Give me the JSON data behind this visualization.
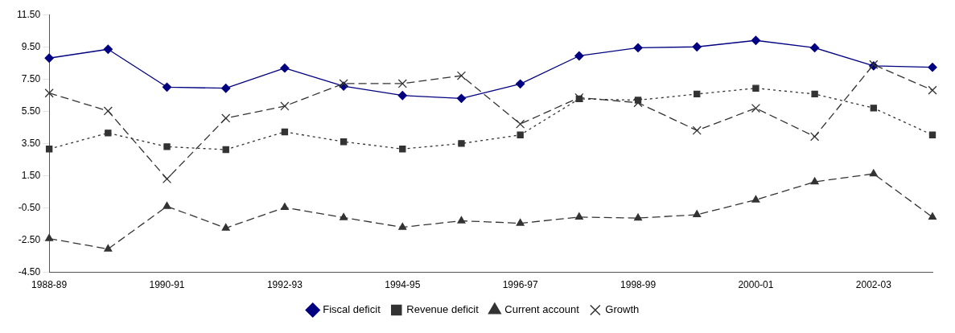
{
  "chart_data": {
    "type": "line",
    "categories": [
      "1988-89",
      null,
      "1990-91",
      null,
      "1992-93",
      null,
      "1994-95",
      null,
      "1996-97",
      null,
      "1998-99",
      null,
      "2000-01",
      null,
      "2002-03",
      null
    ],
    "series": [
      {
        "name": "Fiscal deficit",
        "color": "#000080",
        "marker": "diamond",
        "line_style": "solid",
        "values": [
          8.8,
          9.35,
          7.0,
          6.93,
          8.18,
          7.06,
          6.48,
          6.3,
          7.2,
          8.94,
          9.44,
          9.5,
          9.9,
          9.44,
          8.32,
          8.23
        ]
      },
      {
        "name": "Revenue deficit",
        "color": "#333333",
        "marker": "square",
        "line_style": "dotted",
        "values": [
          3.16,
          4.15,
          3.3,
          3.12,
          4.22,
          3.61,
          3.16,
          3.5,
          4.03,
          6.27,
          6.19,
          6.57,
          6.93,
          6.57,
          5.7,
          4.03
        ]
      },
      {
        "name": "Current account",
        "color": "#333333",
        "marker": "triangle",
        "line_style": "dashed",
        "values": [
          -2.4,
          -3.05,
          -0.4,
          -1.75,
          -0.47,
          -1.1,
          -1.7,
          -1.3,
          -1.45,
          -1.07,
          -1.13,
          -0.92,
          0.0,
          1.12,
          1.62,
          -1.07
        ]
      },
      {
        "name": "Growth",
        "color": "#333333",
        "marker": "cross",
        "line_style": "dashed",
        "values": [
          6.63,
          5.52,
          1.3,
          5.07,
          5.82,
          7.22,
          7.22,
          7.71,
          4.71,
          6.35,
          6.03,
          4.31,
          5.69,
          3.93,
          8.4,
          6.81
        ]
      }
    ],
    "ylim": [
      -4.5,
      11.5
    ],
    "yticks": [
      {
        "value": -4.5,
        "label": "-4.50"
      },
      {
        "value": -2.5,
        "label": "-2.50"
      },
      {
        "value": -0.5,
        "label": "-0.50"
      },
      {
        "value": 1.5,
        "label": "1.50"
      },
      {
        "value": 3.5,
        "label": "3.50"
      },
      {
        "value": 5.5,
        "label": "5.50"
      },
      {
        "value": 7.5,
        "label": "7.50"
      },
      {
        "value": 9.5,
        "label": "9.50"
      },
      {
        "value": 11.5,
        "label": "11.50"
      }
    ],
    "grid": false,
    "legend": "bottom"
  }
}
